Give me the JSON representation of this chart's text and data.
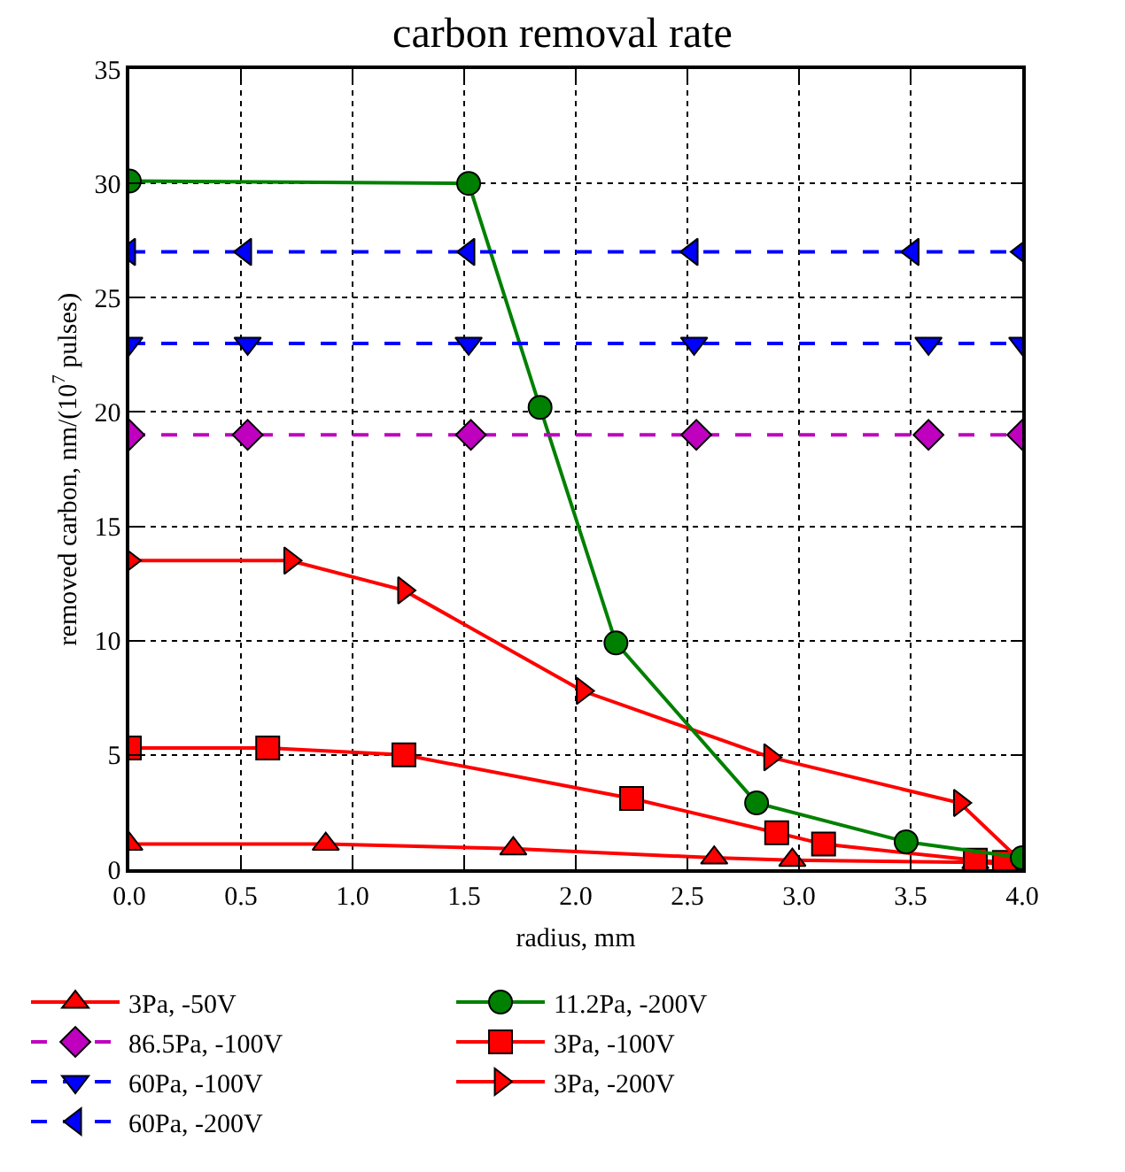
{
  "chart_data": {
    "type": "line",
    "title": "carbon removal rate",
    "xlabel": "radius, mm",
    "ylabel": "removed carbon, nm/(10$^{7}$ pulses)",
    "xlim": [
      0,
      4
    ],
    "xticks": [
      {
        "value": 0,
        "label": "0.0"
      },
      {
        "value": 0.5,
        "label": "0.5"
      },
      {
        "value": 1,
        "label": "1.0"
      },
      {
        "value": 1.5,
        "label": "1.5"
      },
      {
        "value": 2,
        "label": "2.0"
      },
      {
        "value": 2.5,
        "label": "2.5"
      },
      {
        "value": 3,
        "label": "3.0"
      },
      {
        "value": 3.5,
        "label": "3.5"
      },
      {
        "value": 4,
        "label": "4.0"
      }
    ],
    "ylim": [
      0,
      35
    ],
    "yticks": [
      0,
      5,
      10,
      15,
      20,
      25,
      30,
      35
    ],
    "grid": true,
    "legend": "bottom",
    "series": [
      {
        "name": "3Pa, -50V",
        "color": "#ff0000",
        "marker": "triangle",
        "x": [
          0,
          0.88,
          1.72,
          2.62,
          2.97,
          3.79,
          4.0
        ],
        "values": [
          1.1,
          1.1,
          0.9,
          0.5,
          0.4,
          0.3,
          0.2
        ]
      },
      {
        "name": "3Pa, -100V",
        "color": "#ff0000",
        "marker": "square",
        "x": [
          0,
          0.62,
          1.23,
          2.25,
          2.9,
          3.11,
          3.79,
          3.92
        ],
        "values": [
          5.3,
          5.3,
          5.0,
          3.1,
          1.6,
          1.1,
          0.4,
          0.3
        ]
      },
      {
        "name": "3Pa, -200V",
        "color": "#ff0000",
        "marker": "triangle-right",
        "x": [
          0,
          0.72,
          1.23,
          2.03,
          2.87,
          3.72,
          4.0
        ],
        "values": [
          13.5,
          13.5,
          12.2,
          7.8,
          4.9,
          2.9,
          0.3
        ]
      },
      {
        "name": "11.2Pa, -200V",
        "color": "#008000",
        "marker": "circle",
        "x": [
          0,
          1.52,
          1.84,
          2.18,
          2.81,
          3.48,
          4.0
        ],
        "values": [
          30.1,
          30.0,
          20.2,
          9.9,
          2.9,
          1.2,
          0.5
        ]
      },
      {
        "name": "60Pa, -100V",
        "color": "#0000ff",
        "marker": "triangle-down",
        "line_style": "dashed",
        "x": [
          0,
          0.53,
          1.52,
          2.53,
          3.58,
          4.0
        ],
        "values": [
          23,
          23,
          23,
          23,
          23,
          23
        ]
      },
      {
        "name": "60Pa, -200V",
        "color": "#0000ff",
        "marker": "triangle-left",
        "line_style": "dashed",
        "x": [
          0,
          0.52,
          1.52,
          2.52,
          3.51,
          4.0
        ],
        "values": [
          27,
          27,
          27,
          27,
          27,
          27
        ]
      },
      {
        "name": "86.5Pa, -100V",
        "color": "#bf00bf",
        "marker": "diamond",
        "line_style": "dashed",
        "x": [
          0,
          0.53,
          1.53,
          2.54,
          3.58,
          4.0
        ],
        "values": [
          19,
          19,
          19,
          19,
          19,
          19
        ]
      }
    ]
  }
}
